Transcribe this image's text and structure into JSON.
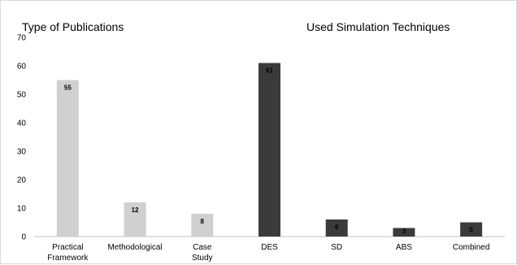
{
  "chart_data": {
    "type": "bar",
    "titles": [
      "Type of Publications",
      "Used Simulation Techniques"
    ],
    "xlabel": "",
    "ylabel": "",
    "ylim": [
      0,
      70
    ],
    "yticks": [
      0,
      10,
      20,
      30,
      40,
      50,
      60,
      70
    ],
    "grid": false,
    "categories": [
      [
        "Practical",
        "Framework"
      ],
      [
        "Methodological"
      ],
      [
        "Case",
        "Study"
      ],
      [
        "DES"
      ],
      [
        "SD"
      ],
      [
        "ABS"
      ],
      [
        "Combined"
      ]
    ],
    "values": [
      55,
      12,
      8,
      61,
      6,
      3,
      5
    ],
    "data_labels": [
      "55",
      "12",
      "8",
      "61",
      "6",
      "3",
      "5"
    ],
    "bar_colors": [
      "#d0d0d0",
      "#d0d0d0",
      "#d0d0d0",
      "#3b3b3b",
      "#3b3b3b",
      "#3b3b3b",
      "#3b3b3b"
    ],
    "label_colors": [
      "#000000",
      "#000000",
      "#000000",
      "#ffffff",
      "#000000",
      "#000000",
      "#000000"
    ]
  }
}
